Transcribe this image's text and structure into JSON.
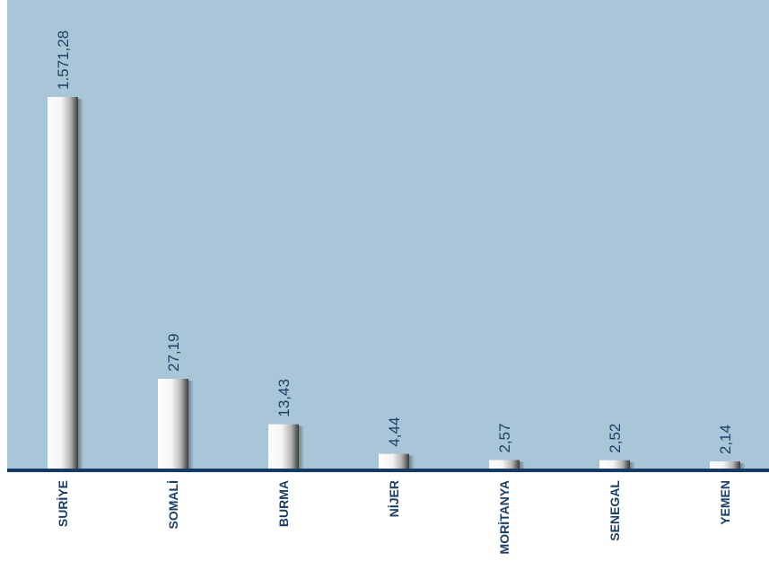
{
  "chart_data": {
    "type": "bar",
    "categories": [
      "SURİYE",
      "SOMALİ",
      "BURMA",
      "NİJER",
      "MORİTANYA",
      "SENEGAL",
      "YEMEN"
    ],
    "values": [
      1571.28,
      27.19,
      13.43,
      4.44,
      2.57,
      2.52,
      2.14
    ],
    "value_labels": [
      "1.571,28",
      "27,19",
      "13,43",
      "4,44",
      "2,57",
      "2,52",
      "2,14"
    ],
    "value_scale": "broken (non-linear); Suriye bar truncated",
    "title": "",
    "xlabel": "",
    "ylabel": "",
    "grid": false,
    "legend": "none",
    "colors": {
      "plot_background": "#a8c6d8",
      "baseline": "#163a66",
      "bar_light": "#ffffff",
      "bar_shadow": "#3a3a3a",
      "label_text": "#1d3f66"
    }
  }
}
